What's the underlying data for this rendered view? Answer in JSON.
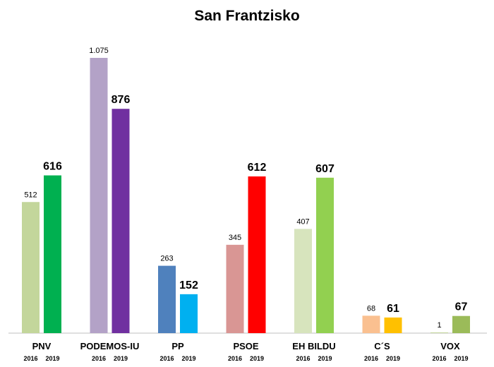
{
  "chart_data": {
    "type": "bar",
    "title": "San Frantzisko",
    "xlabel": "",
    "ylabel": "",
    "ylim": [
      0,
      1100
    ],
    "grid": false,
    "legend": "none",
    "categories": [
      "PNV",
      "PODEMOS-IU",
      "PP",
      "PSOE",
      "EH BILDU",
      "C´S",
      "VOX"
    ],
    "series_years": [
      "2016",
      "2019"
    ],
    "series": [
      {
        "values": [
          512,
          1075,
          263,
          345,
          407,
          68,
          1
        ],
        "value_labels": [
          "512",
          "1.075",
          "263",
          "345",
          "407",
          "68",
          "1"
        ]
      },
      {
        "values": [
          616,
          876,
          152,
          612,
          607,
          61,
          67
        ],
        "value_labels": [
          "616",
          "876",
          "152",
          "612",
          "607",
          "61",
          "67"
        ]
      }
    ],
    "colors": [
      [
        "#c3d69b",
        "#00b050"
      ],
      [
        "#b3a2c7",
        "#7030a0"
      ],
      [
        "#4f81bd",
        "#00b0f0"
      ],
      [
        "#d99694",
        "#ff0000"
      ],
      [
        "#d7e4bd",
        "#92d050"
      ],
      [
        "#fac090",
        "#ffc000"
      ],
      [
        "#c3d69b",
        "#9bbb59"
      ]
    ],
    "axis_color": "#bfbfbf"
  }
}
